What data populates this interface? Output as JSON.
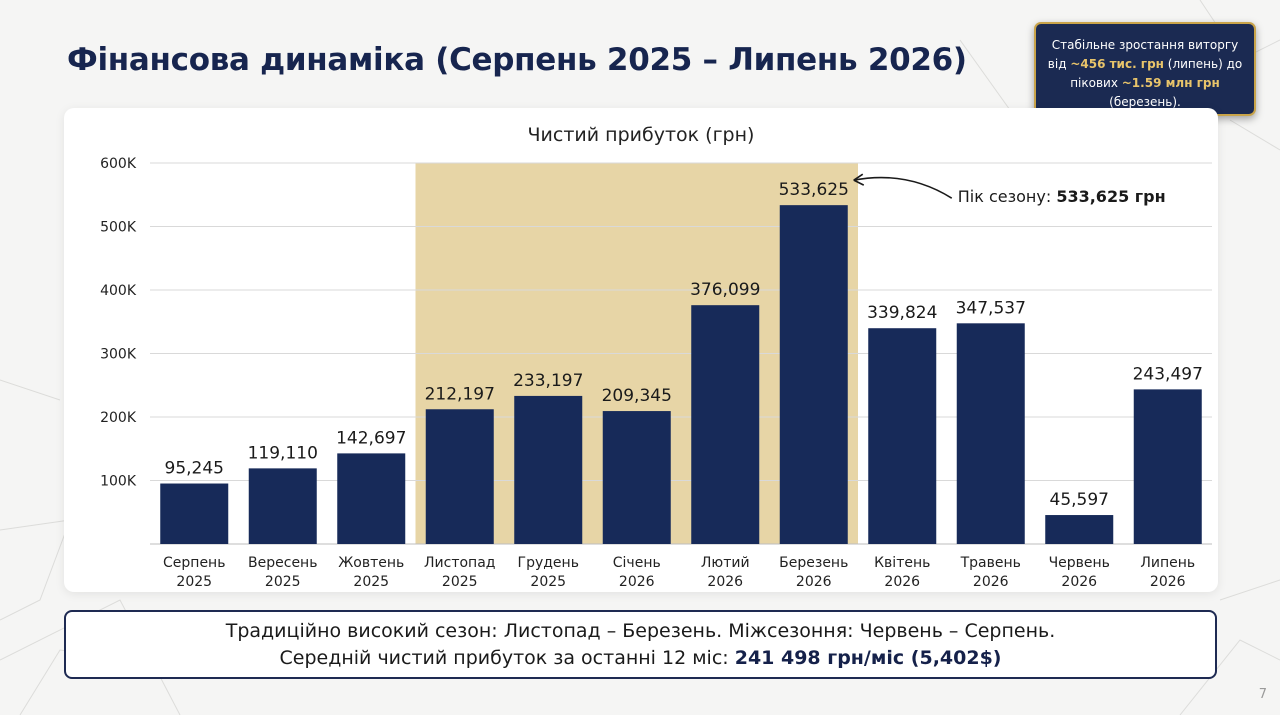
{
  "page": {
    "title": "Фінансова динаміка (Серпень 2025 – Липень 2026)",
    "page_number": "7"
  },
  "callout": {
    "line_prefix": "Стабільне зростання виторгу від ",
    "low_value": "~456 тис. грн",
    "mid": " (липень) до пікових ",
    "high_value": "~1.59 млн грн",
    "suffix": " (березень)."
  },
  "summary": {
    "line1": "Традиційно високий сезон: Листопад – Березень. Міжсезоння: Червень – Серпень.",
    "line2_prefix": "Середній чистий прибуток за останні 12 міс: ",
    "line2_value": "241 498 грн/міс (5,402$)"
  },
  "colors": {
    "bar": "#172a59",
    "highlight": "#e7d5a6",
    "title": "#17254f",
    "accent_gold": "#c9a44a"
  },
  "chart_data": {
    "type": "bar",
    "title": "Чистий прибуток (грн)",
    "categories": [
      [
        "Серпень",
        "2025"
      ],
      [
        "Вересень",
        "2025"
      ],
      [
        "Жовтень",
        "2025"
      ],
      [
        "Листопад",
        "2025"
      ],
      [
        "Грудень",
        "2025"
      ],
      [
        "Січень",
        "2026"
      ],
      [
        "Лютий",
        "2026"
      ],
      [
        "Березень",
        "2026"
      ],
      [
        "Квітень",
        "2026"
      ],
      [
        "Травень",
        "2026"
      ],
      [
        "Червень",
        "2026"
      ],
      [
        "Липень",
        "2026"
      ]
    ],
    "values": [
      95245,
      119110,
      142697,
      212197,
      233197,
      209345,
      376099,
      533625,
      339824,
      347537,
      45597,
      243497
    ],
    "data_labels": [
      "95,245",
      "119,110",
      "142,697",
      "212,197",
      "233,197",
      "209,345",
      "376,099",
      "533,625",
      "339,824",
      "347,537",
      "45,597",
      "243,497"
    ],
    "ylim": [
      0,
      600000
    ],
    "yticks": [
      100000,
      200000,
      300000,
      400000,
      500000,
      600000
    ],
    "ytick_labels": [
      "100K",
      "200K",
      "300K",
      "400K",
      "500K",
      "600K"
    ],
    "grid": true,
    "highlight_range": [
      "Листопад 2025",
      "Березень 2026"
    ],
    "annotation": {
      "prefix": "Пік сезону: ",
      "value": "533,625 грн"
    }
  }
}
